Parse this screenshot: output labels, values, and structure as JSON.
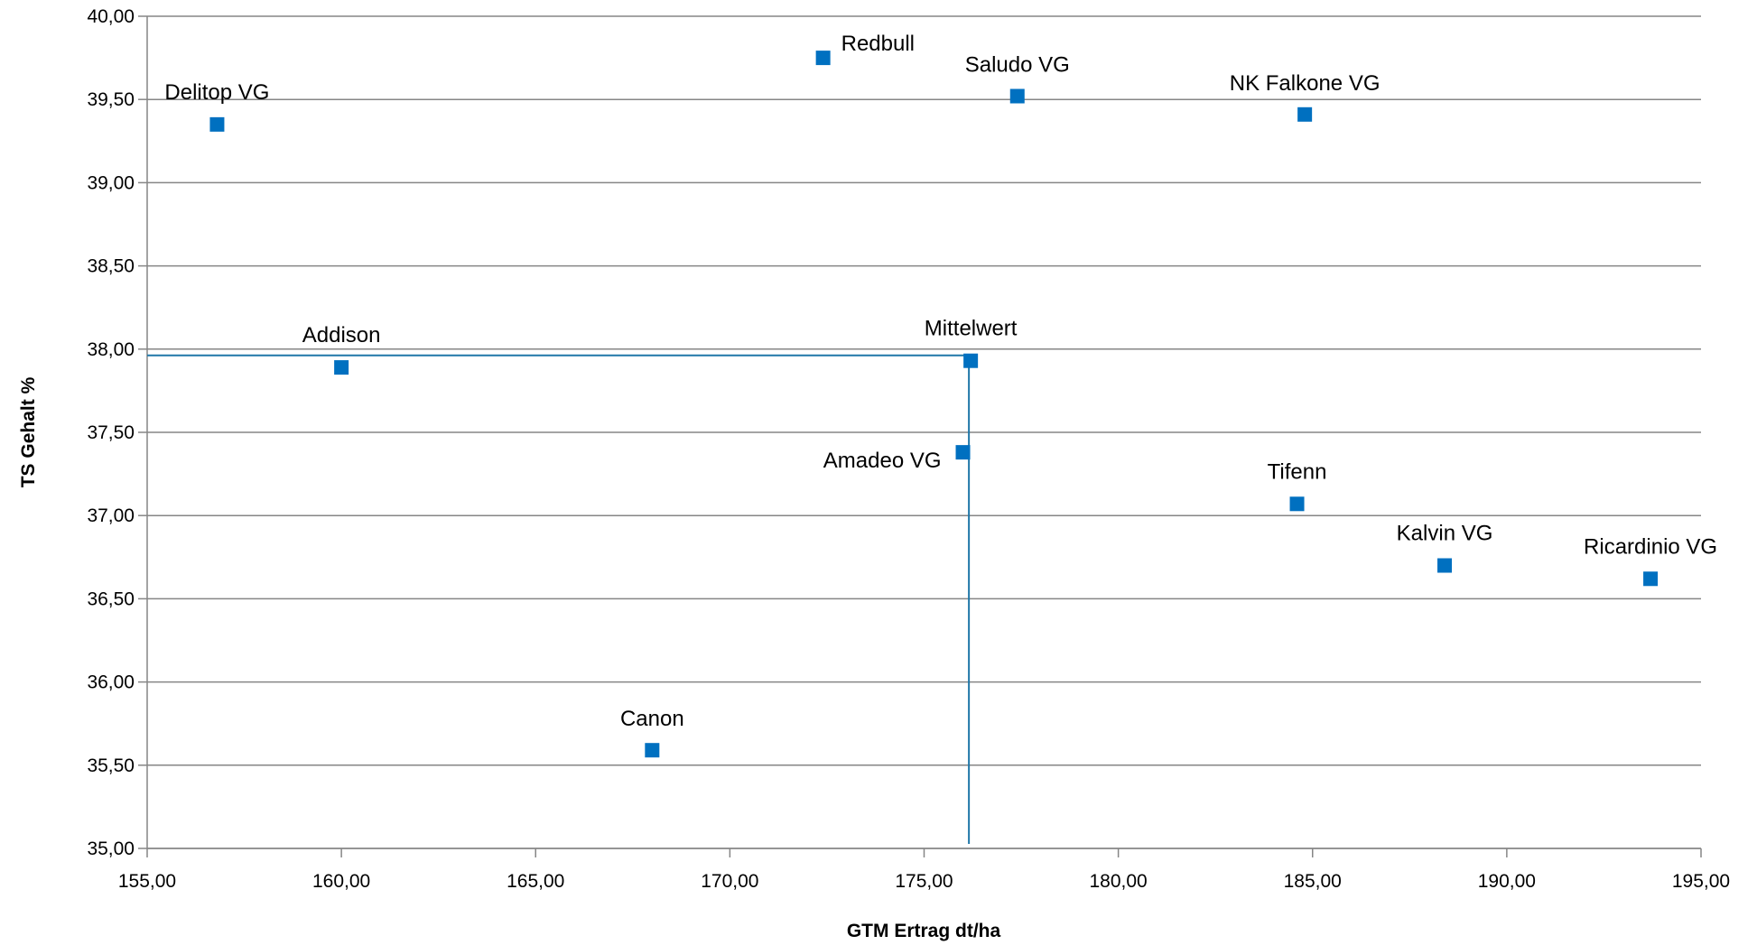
{
  "chart_data": {
    "type": "scatter",
    "xlabel": "GTM Ertrag dt/ha",
    "ylabel": "TS Gehalt %",
    "xlim": [
      155,
      195
    ],
    "ylim": [
      35,
      40
    ],
    "x_ticks": [
      "155,00",
      "160,00",
      "165,00",
      "170,00",
      "175,00",
      "180,00",
      "185,00",
      "190,00",
      "195,00"
    ],
    "y_ticks": [
      "35,00",
      "35,50",
      "36,00",
      "36,50",
      "37,00",
      "37,50",
      "38,00",
      "38,50",
      "39,00",
      "39,50",
      "40,00"
    ],
    "grid": "horizontal",
    "marker_color": "#0070C0",
    "reference_line_color": "#1F77A8",
    "mean": {
      "x": 176.2,
      "y": 37.93
    },
    "points": [
      {
        "label": "Delitop VG",
        "x": 156.8,
        "y": 39.35
      },
      {
        "label": "Redbull",
        "x": 172.4,
        "y": 39.75
      },
      {
        "label": "Saludo VG",
        "x": 177.4,
        "y": 39.52
      },
      {
        "label": "NK Falkone VG",
        "x": 184.8,
        "y": 39.41
      },
      {
        "label": "Addison",
        "x": 160.0,
        "y": 37.89
      },
      {
        "label": "Mittelwert",
        "x": 176.2,
        "y": 37.93
      },
      {
        "label": "Amadeo VG",
        "x": 176.0,
        "y": 37.38
      },
      {
        "label": "Tifenn",
        "x": 184.6,
        "y": 37.07
      },
      {
        "label": "Kalvin VG",
        "x": 188.4,
        "y": 36.7
      },
      {
        "label": "Ricardinio VG",
        "x": 193.7,
        "y": 36.62
      },
      {
        "label": "Canon",
        "x": 168.0,
        "y": 35.59
      }
    ]
  }
}
